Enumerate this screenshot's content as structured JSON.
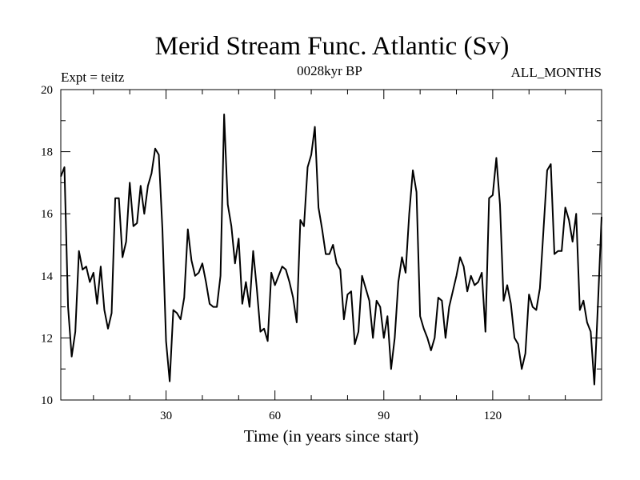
{
  "chart_data": {
    "type": "line",
    "title": "Merid Stream Func. Atlantic (Sv)",
    "subtitle_left": "Expt = teitz",
    "subtitle_center": "0028kyr BP",
    "subtitle_right": "ALL_MONTHS",
    "xlabel": "Time (in years since start)",
    "ylabel": "",
    "xlim": [
      1,
      150
    ],
    "ylim": [
      10,
      20
    ],
    "xticks_major": [
      30,
      60,
      90,
      120
    ],
    "xticks_minor": [
      10,
      20,
      40,
      50,
      70,
      80,
      100,
      110,
      130,
      140
    ],
    "yticks": [
      10,
      12,
      14,
      16,
      18,
      20
    ],
    "grid": false,
    "series": [
      {
        "name": "Merid Stream Func. Atlantic",
        "color": "#000000",
        "x": [
          1,
          2,
          3,
          4,
          5,
          6,
          7,
          8,
          9,
          10,
          11,
          12,
          13,
          14,
          15,
          16,
          17,
          18,
          19,
          20,
          21,
          22,
          23,
          24,
          25,
          26,
          27,
          28,
          29,
          30,
          31,
          32,
          33,
          34,
          35,
          36,
          37,
          38,
          39,
          40,
          41,
          42,
          43,
          44,
          45,
          46,
          47,
          48,
          49,
          50,
          51,
          52,
          53,
          54,
          55,
          56,
          57,
          58,
          59,
          60,
          61,
          62,
          63,
          64,
          65,
          66,
          67,
          68,
          69,
          70,
          71,
          72,
          73,
          74,
          75,
          76,
          77,
          78,
          79,
          80,
          81,
          82,
          83,
          84,
          85,
          86,
          87,
          88,
          89,
          90,
          91,
          92,
          93,
          94,
          95,
          96,
          97,
          98,
          99,
          100,
          101,
          102,
          103,
          104,
          105,
          106,
          107,
          108,
          109,
          110,
          111,
          112,
          113,
          114,
          115,
          116,
          117,
          118,
          119,
          120,
          121,
          122,
          123,
          124,
          125,
          126,
          127,
          128,
          129,
          130,
          131,
          132,
          133,
          134,
          135,
          136,
          137,
          138,
          139,
          140,
          141,
          142,
          143,
          144,
          145,
          146,
          147,
          148,
          149,
          150
        ],
        "values": [
          17.2,
          17.5,
          13.0,
          11.4,
          12.2,
          14.8,
          14.2,
          14.3,
          13.8,
          14.1,
          13.1,
          14.3,
          12.9,
          12.3,
          12.8,
          16.5,
          16.5,
          14.6,
          15.1,
          17.0,
          15.6,
          15.7,
          16.9,
          16.0,
          16.9,
          17.3,
          18.1,
          17.9,
          15.5,
          11.9,
          10.6,
          12.9,
          12.8,
          12.6,
          13.3,
          15.5,
          14.5,
          14.0,
          14.1,
          14.4,
          13.8,
          13.1,
          13.0,
          13.0,
          14.0,
          19.2,
          16.3,
          15.6,
          14.4,
          15.2,
          13.1,
          13.8,
          13.0,
          14.8,
          13.6,
          12.2,
          12.3,
          11.9,
          14.1,
          13.7,
          14.0,
          14.3,
          14.2,
          13.8,
          13.3,
          12.5,
          15.8,
          15.6,
          17.5,
          17.9,
          18.8,
          16.2,
          15.5,
          14.7,
          14.7,
          15.0,
          14.4,
          14.2,
          12.6,
          13.4,
          13.5,
          11.8,
          12.2,
          14.0,
          13.6,
          13.2,
          12.0,
          13.2,
          13.0,
          12.0,
          12.7,
          11.0,
          12.0,
          13.8,
          14.6,
          14.1,
          16.0,
          17.4,
          16.7,
          12.7,
          12.3,
          12.0,
          11.6,
          12.0,
          13.3,
          13.2,
          12.0,
          13.0,
          13.5,
          14.0,
          14.6,
          14.3,
          13.5,
          14.0,
          13.7,
          13.8,
          14.1,
          12.2,
          16.5,
          16.6,
          17.8,
          16.3,
          13.2,
          13.7,
          13.1,
          12.0,
          11.8,
          11.0,
          11.5,
          13.4,
          13.0,
          12.9,
          13.6,
          15.5,
          17.4,
          17.6,
          14.7,
          14.8,
          14.8,
          16.2,
          15.8,
          15.1,
          16.0,
          12.9,
          13.2,
          12.5,
          12.2,
          10.5,
          13.1,
          15.9
        ]
      }
    ]
  }
}
